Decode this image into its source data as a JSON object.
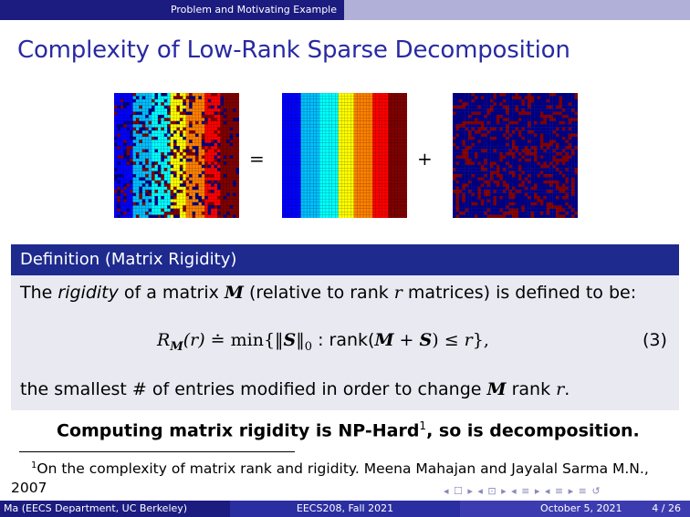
{
  "header": {
    "section": "Problem and Motivating Example"
  },
  "title": "Complexity of Low-Rank Sparse Decomposition",
  "figure": {
    "equals": "=",
    "plus": "+",
    "palette": [
      "#00007f",
      "#0000ff",
      "#00bfff",
      "#00ffff",
      "#ffff00",
      "#ff8000",
      "#ff0000",
      "#7f0000"
    ]
  },
  "definition": {
    "header": "Definition (Matrix Rigidity)",
    "line1_a": "The ",
    "line1_rigidity": "rigidity",
    "line1_b": " of a matrix ",
    "line1_M": "M",
    "line1_c": " (relative to rank ",
    "line1_r": "r",
    "line1_d": " matrices) is defined to be:",
    "eq_lhs": "R",
    "eq_lhs_sub": "M",
    "eq_arg": "(r)",
    "eq_rel": " ≐ min{‖",
    "eq_S": "S",
    "eq_norm": "‖",
    "eq_norm_sub": "0",
    "eq_colon": " : rank(",
    "eq_M": "M",
    "eq_plus": " + ",
    "eq_S2": "S",
    "eq_close": ") ≤ ",
    "eq_r": "r",
    "eq_end": "},",
    "eq_number": "(3)",
    "line3_a": "the smallest # of entries modified in order to change ",
    "line3_M": "M",
    "line3_b": " rank ",
    "line3_r": "r",
    "line3_c": "."
  },
  "claim": {
    "text": "Computing matrix rigidity is NP-Hard",
    "sup": "1",
    "rest": ", so is decomposition."
  },
  "footnote": {
    "mark": "1",
    "text": "On the complexity of matrix rank and rigidity. Meena Mahajan and Jayalal Sarma M.N., 2007"
  },
  "nav_symbols": "◂ ☐ ▸ ◂ ⊡ ▸ ◂ ≡ ▸ ◂ ≡ ▸   ≡   ↺",
  "footer": {
    "author": "Ma  (EECS Department, UC Berkeley)",
    "course": "EECS208, Fall 2021",
    "date": "October 5, 2021",
    "page": "4 / 26"
  }
}
